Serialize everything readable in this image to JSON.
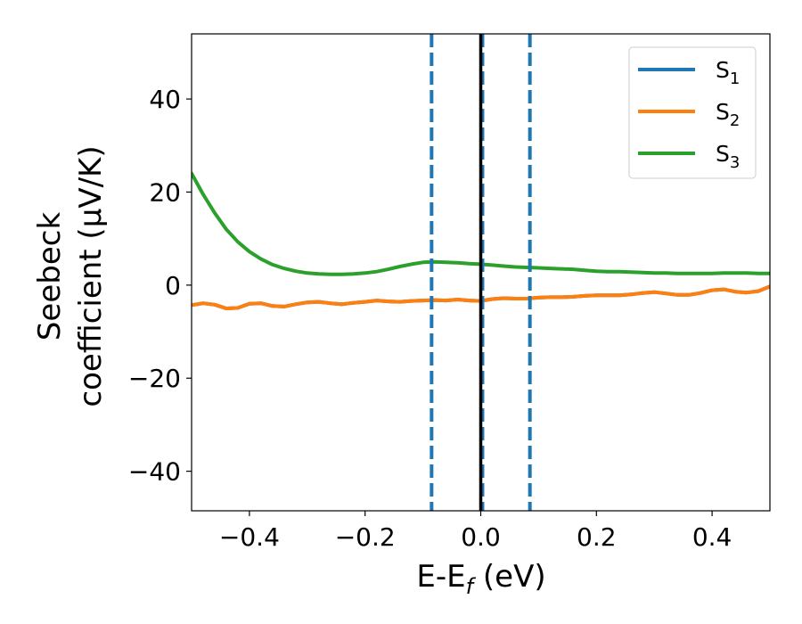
{
  "chart_data": {
    "type": "line",
    "title": "",
    "xlabel": "E-E",
    "xlabel_sub": "f",
    "xlabel_tail": " (eV)",
    "ylabel_line1": "Seebeck",
    "ylabel_line2": "coefficient  (μV/K)",
    "xlim": [
      -0.5,
      0.5
    ],
    "ylim": [
      -48.5,
      54
    ],
    "xticks": [
      -0.4,
      -0.2,
      0.0,
      0.2,
      0.4
    ],
    "xtick_labels": [
      "−0.4",
      "−0.2",
      "0.0",
      "0.2",
      "0.4"
    ],
    "yticks": [
      40,
      20,
      0,
      -20,
      -40
    ],
    "ytick_labels": [
      "40",
      "20",
      "0",
      "−20",
      "−40"
    ],
    "grid": false,
    "legend_position": "top-right",
    "series": [
      {
        "name": "S",
        "subscript": "1",
        "color": "#1f77b4",
        "x": [
          -0.5,
          -0.48,
          -0.46,
          -0.44,
          -0.42,
          -0.4,
          -0.38,
          -0.36,
          -0.34,
          -0.32,
          -0.3,
          -0.28,
          -0.26,
          -0.24,
          -0.22,
          -0.2,
          -0.18,
          -0.16,
          -0.14,
          -0.12,
          -0.1,
          -0.08,
          -0.06,
          -0.04,
          -0.02,
          0.0,
          0.02,
          0.04,
          0.06,
          0.08,
          0.1,
          0.12,
          0.14,
          0.16,
          0.18,
          0.2,
          0.22,
          0.24,
          0.26,
          0.28,
          0.3,
          0.32,
          0.34,
          0.36,
          0.38,
          0.4,
          0.42,
          0.44,
          0.46,
          0.48,
          0.5
        ],
        "y": [
          -4.3,
          -3.9,
          -4.2,
          -5.0,
          -4.9,
          -4.0,
          -3.9,
          -4.5,
          -4.6,
          -4.1,
          -3.7,
          -3.6,
          -3.9,
          -4.1,
          -3.8,
          -3.6,
          -3.3,
          -3.5,
          -3.6,
          -3.4,
          -3.3,
          -3.2,
          -3.3,
          -3.1,
          -3.3,
          -3.4,
          -3.0,
          -2.8,
          -2.9,
          -2.9,
          -2.7,
          -2.6,
          -2.6,
          -2.5,
          -2.3,
          -2.2,
          -2.2,
          -2.2,
          -2.0,
          -1.7,
          -1.5,
          -1.8,
          -2.1,
          -2.1,
          -1.7,
          -1.1,
          -0.9,
          -1.4,
          -1.6,
          -1.3,
          -0.3
        ]
      },
      {
        "name": "S",
        "subscript": "2",
        "color": "#ff7f0e",
        "x": [
          -0.5,
          -0.48,
          -0.46,
          -0.44,
          -0.42,
          -0.4,
          -0.38,
          -0.36,
          -0.34,
          -0.32,
          -0.3,
          -0.28,
          -0.26,
          -0.24,
          -0.22,
          -0.2,
          -0.18,
          -0.16,
          -0.14,
          -0.12,
          -0.1,
          -0.08,
          -0.06,
          -0.04,
          -0.02,
          0.0,
          0.02,
          0.04,
          0.06,
          0.08,
          0.1,
          0.12,
          0.14,
          0.16,
          0.18,
          0.2,
          0.22,
          0.24,
          0.26,
          0.28,
          0.3,
          0.32,
          0.34,
          0.36,
          0.38,
          0.4,
          0.42,
          0.44,
          0.46,
          0.48,
          0.5
        ],
        "y": [
          -4.3,
          -3.9,
          -4.2,
          -5.0,
          -4.9,
          -4.0,
          -3.9,
          -4.5,
          -4.6,
          -4.1,
          -3.7,
          -3.6,
          -3.9,
          -4.1,
          -3.8,
          -3.6,
          -3.3,
          -3.5,
          -3.6,
          -3.4,
          -3.3,
          -3.2,
          -3.3,
          -3.1,
          -3.3,
          -3.4,
          -3.0,
          -2.8,
          -2.9,
          -2.9,
          -2.7,
          -2.6,
          -2.6,
          -2.5,
          -2.3,
          -2.2,
          -2.2,
          -2.2,
          -2.0,
          -1.7,
          -1.5,
          -1.8,
          -2.1,
          -2.1,
          -1.7,
          -1.1,
          -0.9,
          -1.4,
          -1.6,
          -1.3,
          -0.3
        ]
      },
      {
        "name": "S",
        "subscript": "3",
        "color": "#2ca02c",
        "x": [
          -0.5,
          -0.48,
          -0.46,
          -0.44,
          -0.42,
          -0.4,
          -0.38,
          -0.36,
          -0.34,
          -0.32,
          -0.3,
          -0.28,
          -0.26,
          -0.24,
          -0.22,
          -0.2,
          -0.18,
          -0.16,
          -0.14,
          -0.12,
          -0.1,
          -0.08,
          -0.06,
          -0.04,
          -0.02,
          0.0,
          0.02,
          0.04,
          0.06,
          0.08,
          0.1,
          0.12,
          0.14,
          0.16,
          0.18,
          0.2,
          0.22,
          0.24,
          0.26,
          0.28,
          0.3,
          0.32,
          0.34,
          0.36,
          0.38,
          0.4,
          0.42,
          0.44,
          0.46,
          0.48,
          0.5
        ],
        "y": [
          24.0,
          19.5,
          15.5,
          12.0,
          9.3,
          7.2,
          5.6,
          4.4,
          3.6,
          3.0,
          2.6,
          2.4,
          2.3,
          2.3,
          2.4,
          2.6,
          2.9,
          3.4,
          4.0,
          4.5,
          4.9,
          5.0,
          4.9,
          4.8,
          4.6,
          4.5,
          4.3,
          4.1,
          3.9,
          3.8,
          3.7,
          3.6,
          3.5,
          3.4,
          3.2,
          3.0,
          2.9,
          2.9,
          2.8,
          2.7,
          2.6,
          2.6,
          2.5,
          2.5,
          2.5,
          2.5,
          2.6,
          2.6,
          2.6,
          2.5,
          2.5
        ]
      }
    ],
    "vlines": [
      {
        "x": -0.085,
        "style": "dashed",
        "color": "#1f77b4"
      },
      {
        "x": 0.003,
        "style": "dashed",
        "color": "#1f77b4"
      },
      {
        "x": 0.085,
        "style": "dashed",
        "color": "#1f77b4"
      },
      {
        "x": 0.0,
        "style": "solid",
        "color": "#000000"
      }
    ]
  }
}
